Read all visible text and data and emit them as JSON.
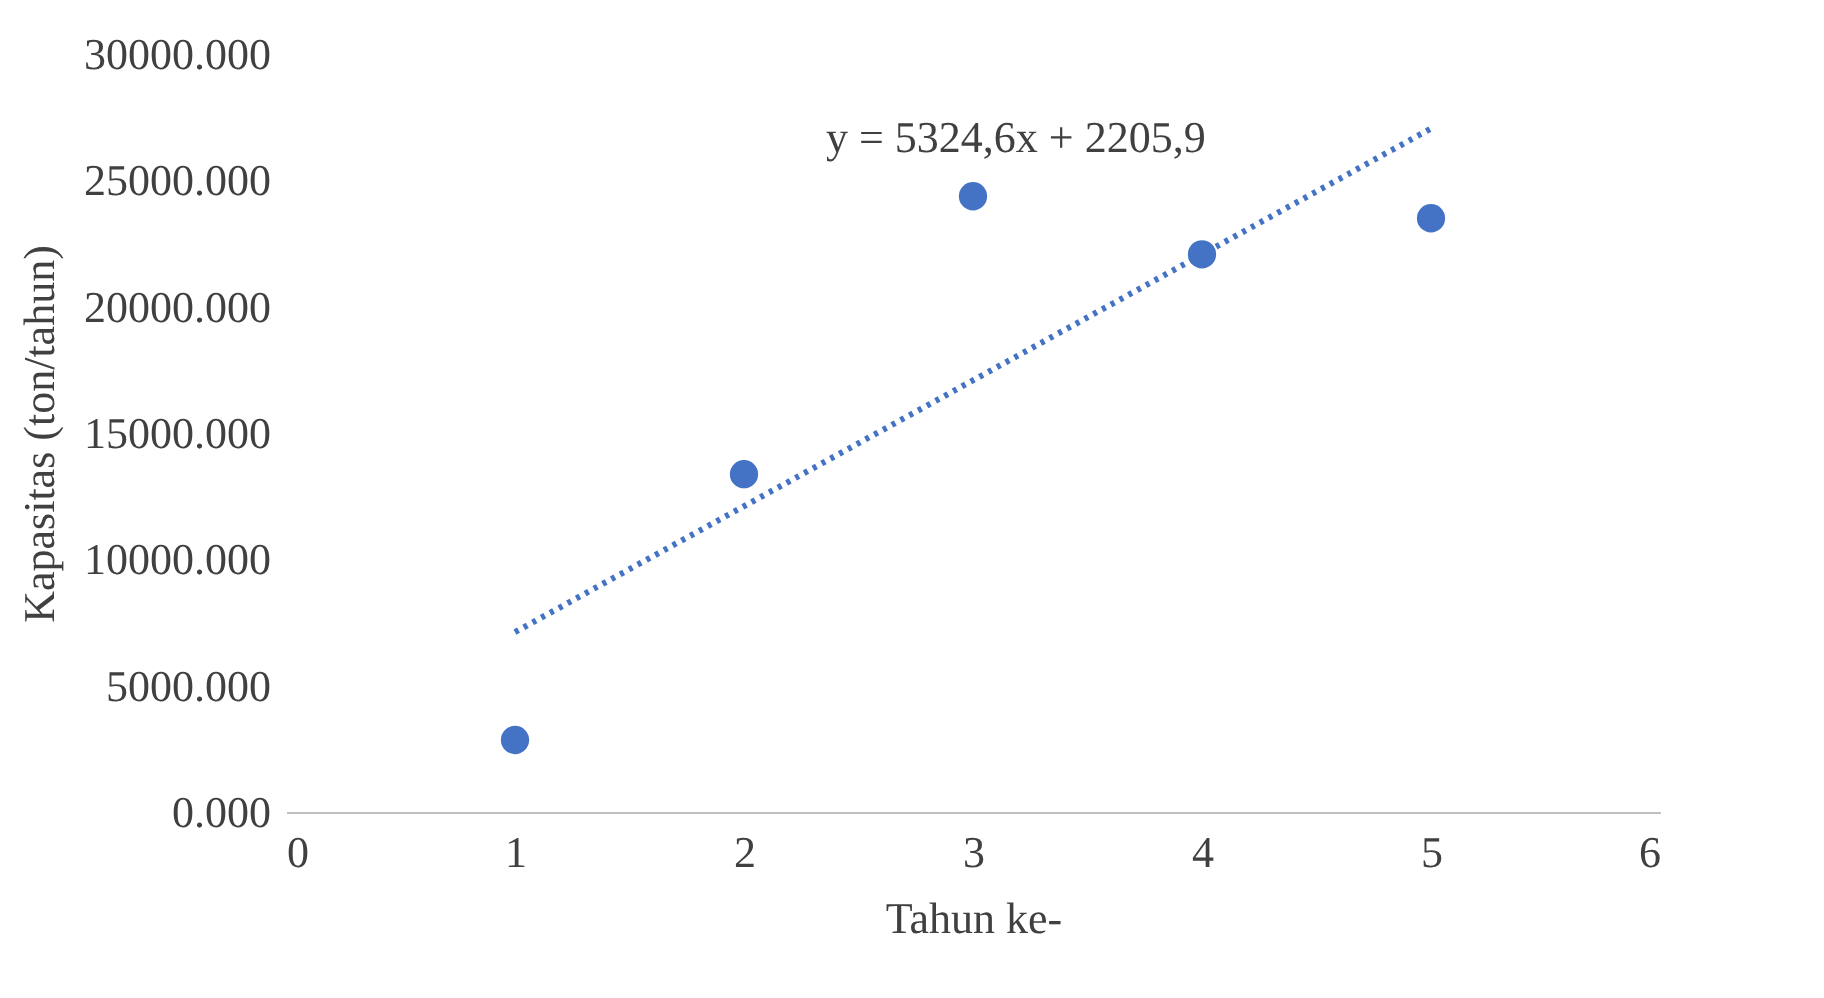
{
  "chart_data": {
    "type": "scatter",
    "xlabel": "Tahun ke-",
    "ylabel": "Kapasitas (ton/tahun)",
    "annotations": [
      "y = 5324,6x + 2205,9"
    ],
    "xlim": [
      0,
      6
    ],
    "xticks": [
      0,
      1,
      2,
      3,
      4,
      5,
      6
    ],
    "ylim": [
      0,
      30000
    ],
    "yticks": [
      {
        "value": 0,
        "label": "0.000"
      },
      {
        "value": 5000,
        "label": "5000.000"
      },
      {
        "value": 10000,
        "label": "10000.000"
      },
      {
        "value": 15000,
        "label": "15000.000"
      },
      {
        "value": 20000,
        "label": "20000.000"
      },
      {
        "value": 25000,
        "label": "25000.000"
      },
      {
        "value": 30000,
        "label": "30000.000"
      }
    ],
    "grid": false,
    "marker": "circle",
    "x": [
      1,
      2,
      3,
      4,
      5
    ],
    "series": [
      {
        "color": "#4472c4",
        "values": [
          2850,
          13370,
          24370,
          22070,
          23500
        ]
      },
      {
        "type": "line",
        "line_style": "dotted",
        "marker": "none",
        "color": "#4472c4",
        "x": [
          1,
          5
        ],
        "values": [
          7120,
          27050
        ]
      }
    ]
  }
}
